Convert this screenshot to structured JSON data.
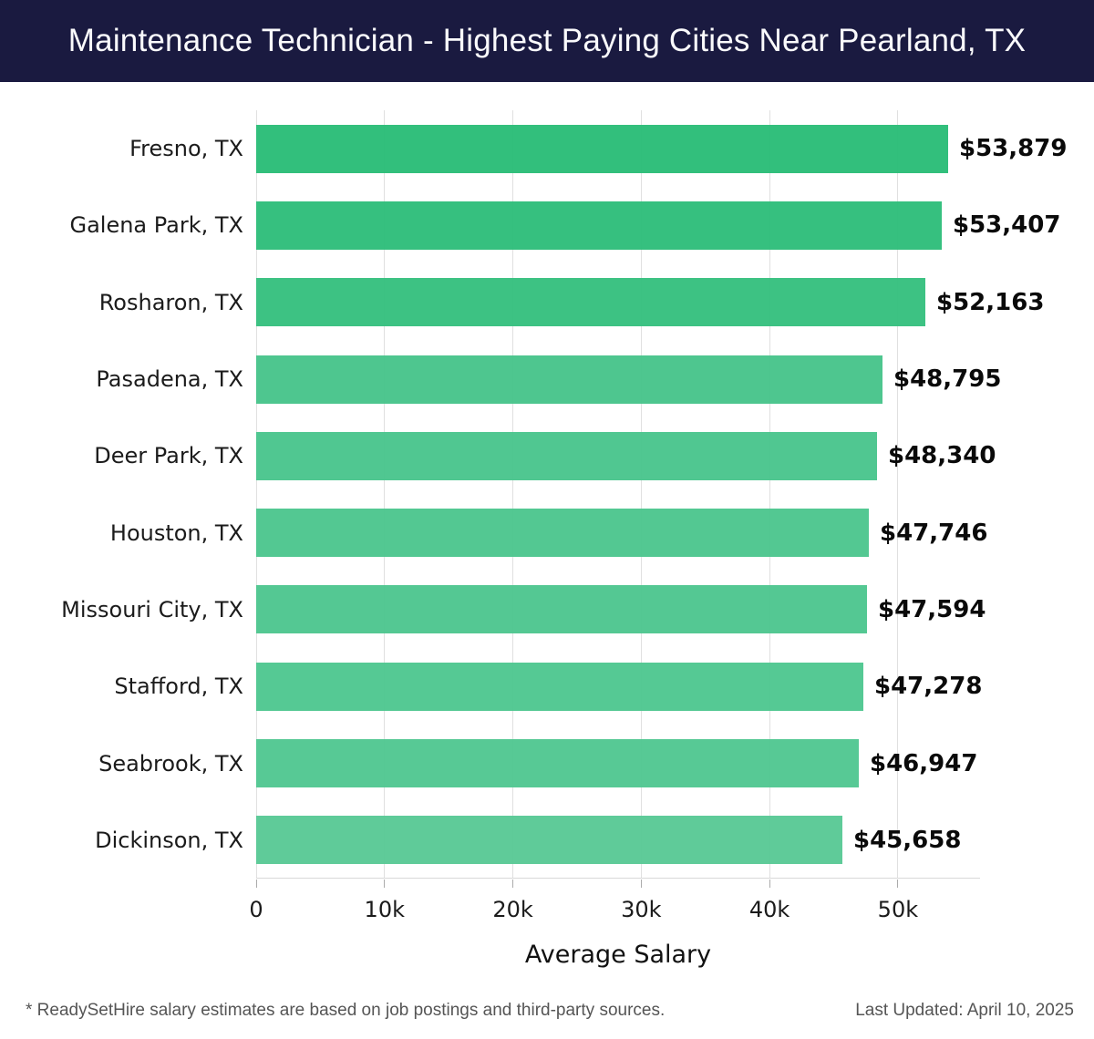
{
  "header": {
    "title": "Maintenance Technician - Highest Paying Cities Near Pearland, TX"
  },
  "chart_data": {
    "type": "bar",
    "orientation": "horizontal",
    "title": "Maintenance Technician - Highest Paying Cities Near Pearland, TX",
    "categories": [
      "Fresno, TX",
      "Galena Park, TX",
      "Rosharon, TX",
      "Pasadena, TX",
      "Deer Park, TX",
      "Houston, TX",
      "Missouri City, TX",
      "Stafford, TX",
      "Seabrook, TX",
      "Dickinson, TX"
    ],
    "values": [
      53879,
      53407,
      52163,
      48795,
      48340,
      47746,
      47594,
      47278,
      46947,
      45658
    ],
    "value_labels": [
      "$53,879",
      "$53,407",
      "$52,163",
      "$48,795",
      "$48,340",
      "$47,746",
      "$47,594",
      "$47,278",
      "$46,947",
      "$45,658"
    ],
    "bar_colors": [
      "#2abc77",
      "#2ebd7a",
      "#35bf7e",
      "#47c48a",
      "#49c58c",
      "#4cc68e",
      "#4dc68f",
      "#4ec790",
      "#50c791",
      "#58c995"
    ],
    "xlabel": "Average Salary",
    "ylabel": "",
    "xlim": [
      0,
      56400
    ],
    "xticks": [
      0,
      10000,
      20000,
      30000,
      40000,
      50000
    ],
    "xtick_labels": [
      "0",
      "10k",
      "20k",
      "30k",
      "40k",
      "50k"
    ],
    "grid": "vertical",
    "gridline_color": "#e0e0e0",
    "legend": "none",
    "background": "#ffffff"
  },
  "footer": {
    "note": "* ReadySetHire salary estimates are based on job postings and third-party sources.",
    "last_updated": "Last Updated: April 10, 2025"
  },
  "colors": {
    "header_bg": "#1a1a40",
    "header_text": "#fafafc",
    "category_text": "#1b1b1b",
    "value_text": "#0a0a0a",
    "footer_text": "#555555"
  }
}
